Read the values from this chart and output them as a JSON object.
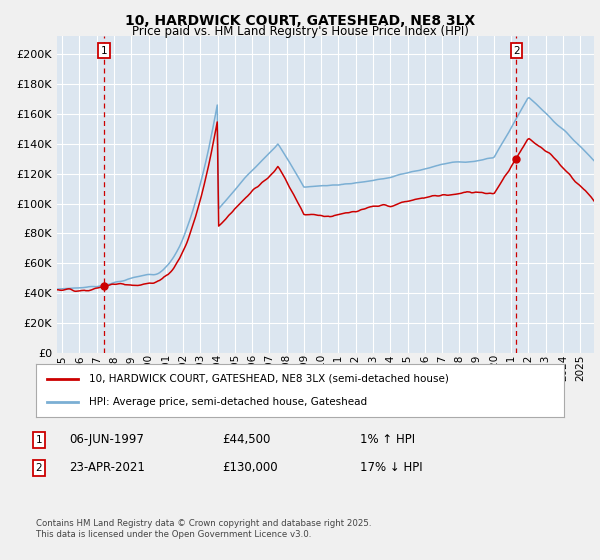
{
  "title_line1": "10, HARDWICK COURT, GATESHEAD, NE8 3LX",
  "title_line2": "Price paid vs. HM Land Registry's House Price Index (HPI)",
  "ytick_vals": [
    0,
    20000,
    40000,
    60000,
    80000,
    100000,
    120000,
    140000,
    160000,
    180000,
    200000
  ],
  "ylim": [
    0,
    212000
  ],
  "xlim_start": 1994.7,
  "xlim_end": 2025.8,
  "fig_facecolor": "#f0f0f0",
  "plot_bg_color": "#dce6f0",
  "hpi_line_color": "#7bafd4",
  "price_line_color": "#cc0000",
  "sale1_price": 44500,
  "sale1_x": 1997.43,
  "sale2_price": 130000,
  "sale2_x": 2021.31,
  "legend_line1": "10, HARDWICK COURT, GATESHEAD, NE8 3LX (semi-detached house)",
  "legend_line2": "HPI: Average price, semi-detached house, Gateshead",
  "footer": "Contains HM Land Registry data © Crown copyright and database right 2025.\nThis data is licensed under the Open Government Licence v3.0.",
  "grid_color": "#ffffff",
  "dashed_line_color": "#cc0000"
}
